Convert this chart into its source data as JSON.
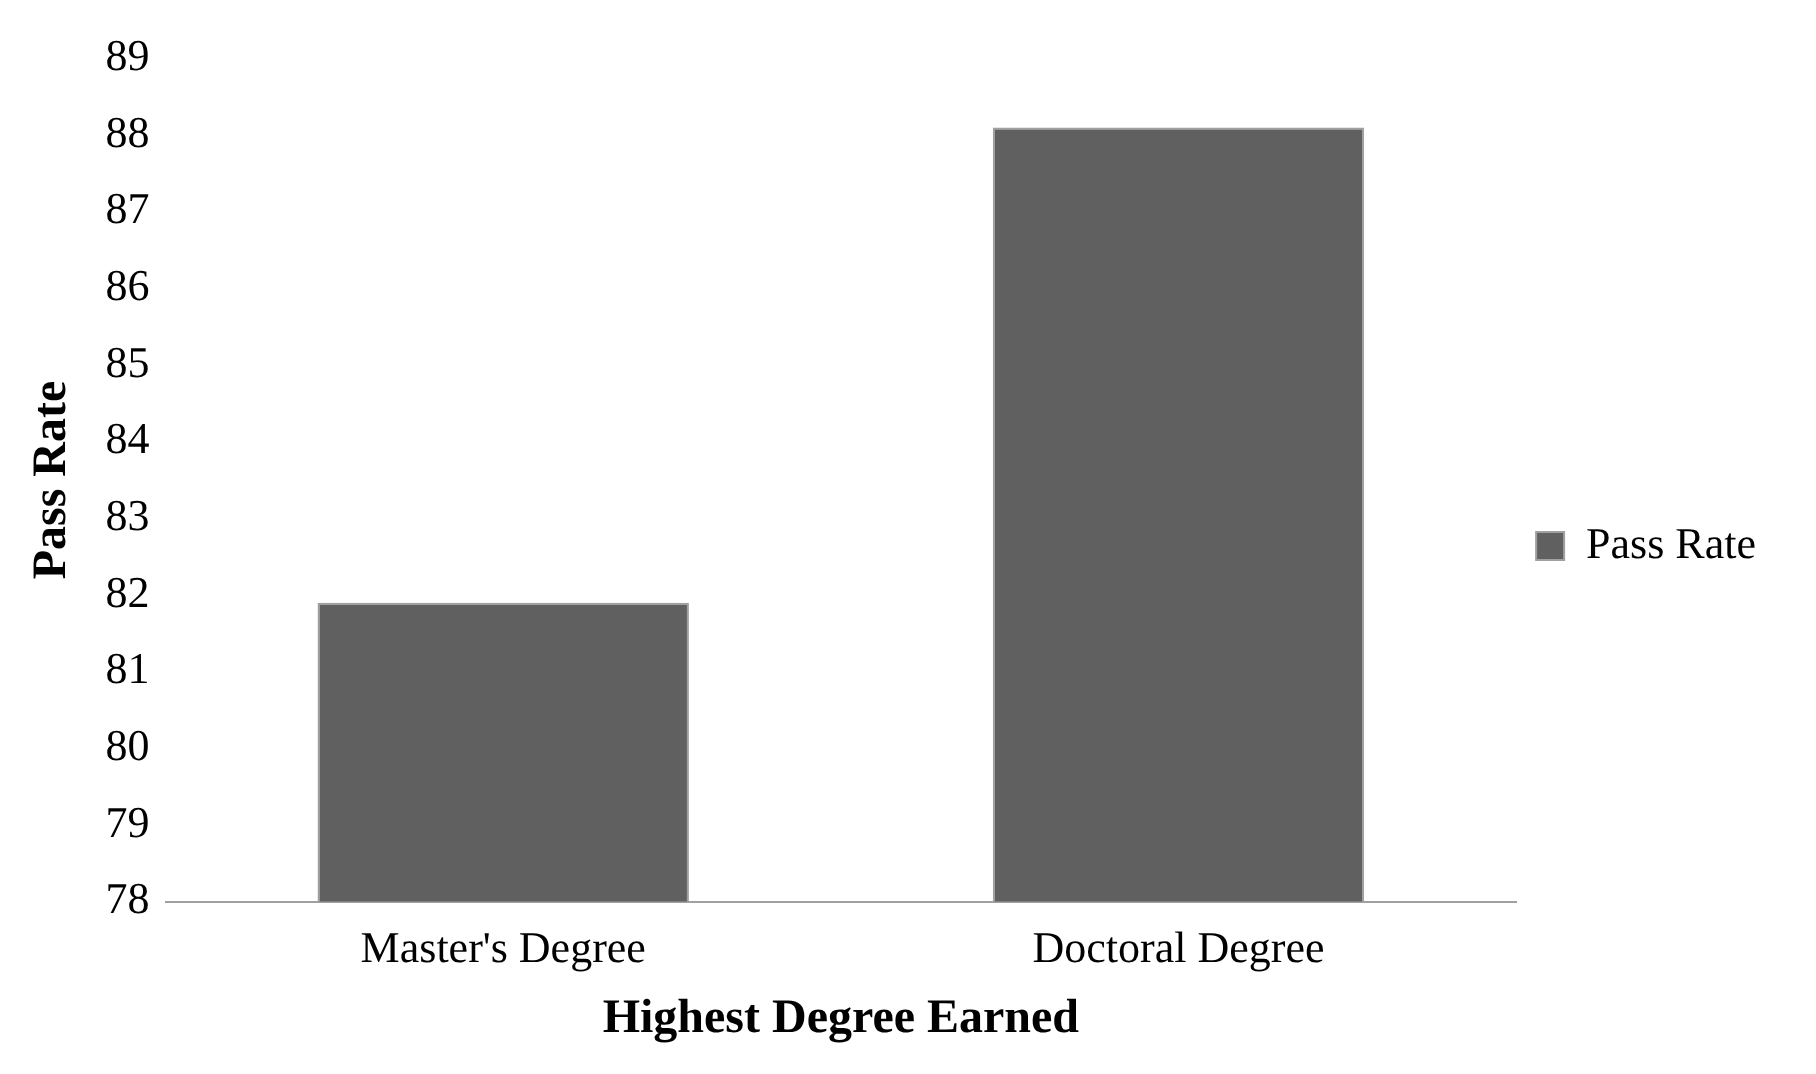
{
  "chart_data": {
    "type": "bar",
    "xlabel": "Highest Degree Earned",
    "ylabel": "Pass Rate",
    "categories": [
      "Master's Degree",
      "Doctoral Degree"
    ],
    "series": [
      {
        "name": "Pass Rate",
        "color": "#606060",
        "values": [
          81.9,
          88.1
        ]
      }
    ],
    "ylim": [
      78,
      89
    ],
    "yticks": [
      78,
      79,
      80,
      81,
      82,
      83,
      84,
      85,
      86,
      87,
      88,
      89
    ],
    "grid": false,
    "legend": "right"
  }
}
